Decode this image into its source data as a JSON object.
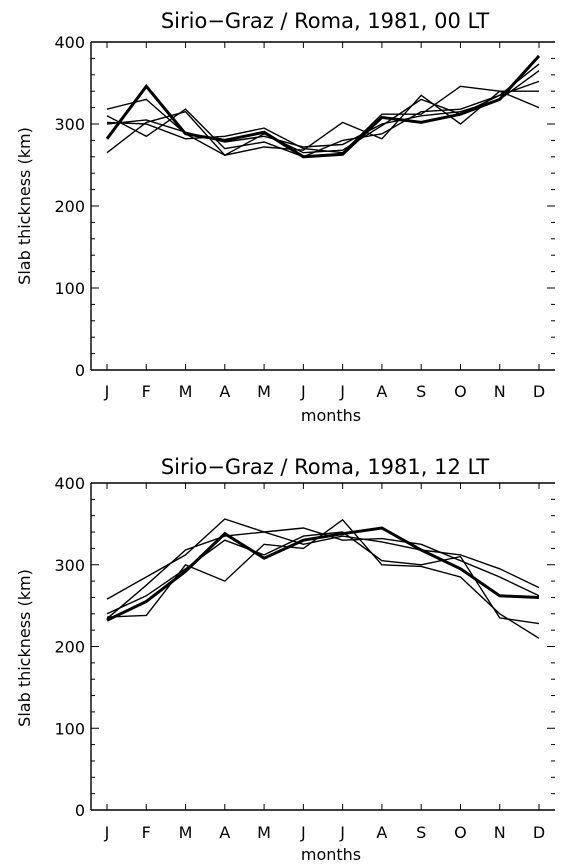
{
  "chart_data": [
    {
      "type": "line",
      "title": "Sirio−Graz / Roma, 1981, 00 LT",
      "xlabel": "months",
      "ylabel": "Slab thickness (km)",
      "categories": [
        "J",
        "F",
        "M",
        "A",
        "M",
        "J",
        "J",
        "A",
        "S",
        "O",
        "N",
        "D"
      ],
      "ylim": [
        0,
        400
      ],
      "yticks": [
        0,
        100,
        200,
        300,
        400
      ],
      "series": [
        {
          "values": [
            282,
            346,
            288,
            280,
            290,
            260,
            263,
            308,
            302,
            312,
            330,
            383
          ],
          "bold": true
        },
        {
          "values": [
            318,
            330,
            288,
            262,
            288,
            265,
            268,
            298,
            330,
            312,
            335,
            373
          ]
        },
        {
          "values": [
            265,
            302,
            315,
            262,
            272,
            268,
            302,
            282,
            335,
            300,
            340,
            340
          ]
        },
        {
          "values": [
            302,
            300,
            282,
            285,
            295,
            270,
            265,
            312,
            312,
            346,
            340,
            320
          ]
        },
        {
          "values": [
            310,
            285,
            318,
            270,
            278,
            260,
            280,
            288,
            315,
            318,
            335,
            352
          ]
        },
        {
          "values": [
            300,
            305,
            290,
            278,
            285,
            272,
            275,
            300,
            310,
            315,
            330,
            365
          ]
        }
      ]
    },
    {
      "type": "line",
      "title": "Sirio−Graz / Roma, 1981, 12 LT",
      "xlabel": "months",
      "ylabel": "Slab thickness (km)",
      "categories": [
        "J",
        "F",
        "M",
        "A",
        "M",
        "J",
        "J",
        "A",
        "S",
        "O",
        "N",
        "D"
      ],
      "ylim": [
        0,
        400
      ],
      "yticks": [
        0,
        100,
        200,
        300,
        400
      ],
      "series": [
        {
          "values": [
            232,
            255,
            292,
            338,
            308,
            330,
            338,
            345,
            318,
            295,
            262,
            260
          ],
          "bold": true
        },
        {
          "values": [
            236,
            238,
            300,
            280,
            325,
            320,
            355,
            300,
            298,
            285,
            240,
            210
          ]
        },
        {
          "values": [
            258,
            285,
            312,
            356,
            340,
            325,
            335,
            328,
            318,
            312,
            295,
            272
          ]
        },
        {
          "values": [
            234,
            275,
            318,
            335,
            340,
            345,
            330,
            332,
            325,
            305,
            285,
            262
          ]
        },
        {
          "values": [
            240,
            262,
            295,
            330,
            312,
            335,
            340,
            305,
            300,
            310,
            235,
            228
          ]
        }
      ]
    }
  ]
}
